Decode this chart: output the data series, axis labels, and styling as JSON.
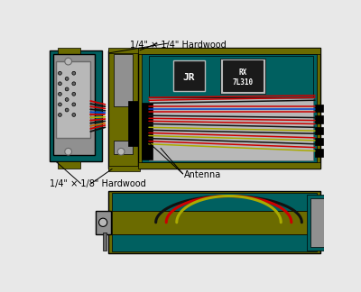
{
  "bg_color": "#e8e8e8",
  "olive": "#6b6b00",
  "teal_dark": "#006060",
  "gray_light": "#b8b8b8",
  "gray_med": "#909090",
  "gray_dark": "#686868",
  "black": "#000000",
  "white": "#ffffff",
  "wire_red": "#cc0000",
  "wire_black": "#111111",
  "wire_yellow": "#aaaa00",
  "wire_blue": "#0044cc",
  "wire_orange": "#cc6600",
  "label_top": "1/4\" × 1/4\" Hardwood",
  "label_bottom_left": "1/4\" × 1/8\" Hardwood",
  "label_antenna": "Antenna",
  "label_jr": "JR",
  "label_rx": "RX\n7L310"
}
